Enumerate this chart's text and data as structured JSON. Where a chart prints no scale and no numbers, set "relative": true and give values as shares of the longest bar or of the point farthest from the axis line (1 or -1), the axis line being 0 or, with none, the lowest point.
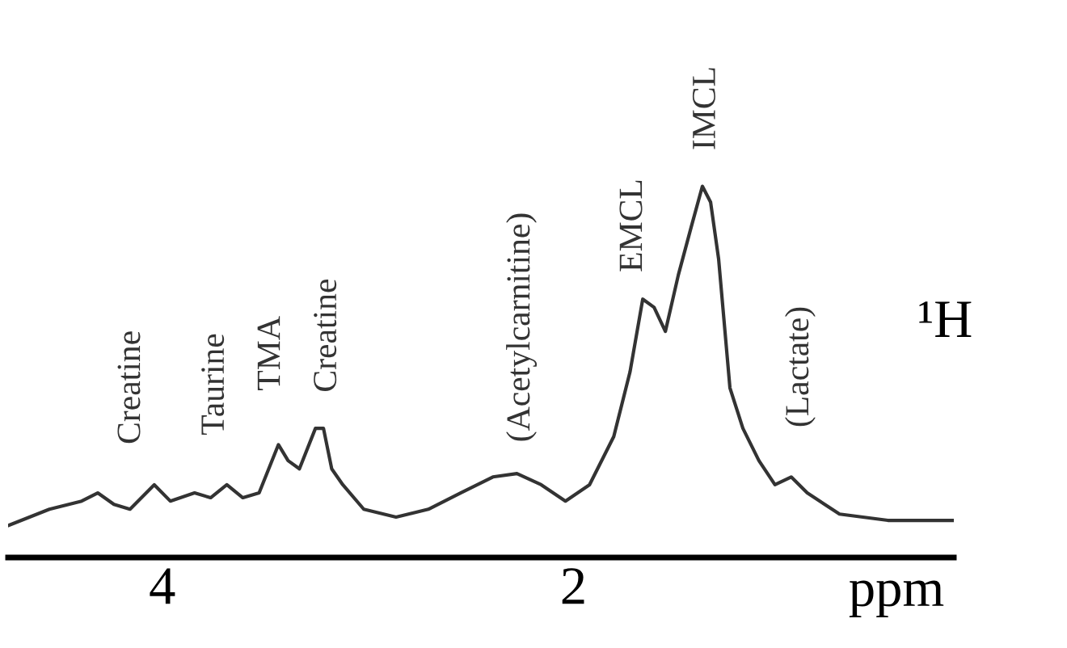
{
  "chart_data": {
    "type": "line",
    "relative": true,
    "xlabel": "ppm",
    "xlim": [
      4.75,
      0.15
    ],
    "xticks": [
      4,
      2
    ],
    "grid": false,
    "marker": "none",
    "line_style": "solid",
    "series": [
      {
        "color": "#333333",
        "x": [
          4.745,
          4.549,
          4.392,
          4.314,
          4.235,
          4.157,
          4.039,
          3.961,
          3.843,
          3.765,
          3.686,
          3.608,
          3.529,
          3.435,
          3.388,
          3.333,
          3.255,
          3.216,
          3.176,
          3.122,
          3.02,
          2.863,
          2.706,
          2.549,
          2.392,
          2.275,
          2.157,
          2.039,
          1.922,
          1.804,
          1.725,
          1.663,
          1.608,
          1.553,
          1.49,
          1.427,
          1.373,
          1.333,
          1.294,
          1.239,
          1.176,
          1.098,
          1.02,
          0.941,
          0.863,
          0.706,
          0.471,
          0.157
        ],
        "values": [
          0.087,
          0.13,
          0.152,
          0.174,
          0.143,
          0.13,
          0.196,
          0.152,
          0.174,
          0.161,
          0.196,
          0.161,
          0.174,
          0.304,
          0.261,
          0.239,
          0.348,
          0.348,
          0.239,
          0.196,
          0.13,
          0.109,
          0.13,
          0.174,
          0.217,
          0.226,
          0.196,
          0.152,
          0.196,
          0.326,
          0.5,
          0.696,
          0.674,
          0.609,
          0.761,
          0.891,
          1.0,
          0.957,
          0.804,
          0.457,
          0.348,
          0.261,
          0.196,
          0.217,
          0.174,
          0.117,
          0.1,
          0.1
        ]
      }
    ],
    "annotations": [
      {
        "text": "Creatine",
        "x": 4.039,
        "y": 0.196
      },
      {
        "text": "Taurine",
        "x": 3.686,
        "y": 0.196
      },
      {
        "text": "TMA",
        "x": 3.435,
        "y": 0.304
      },
      {
        "text": "Creatine",
        "x": 3.216,
        "y": 0.348
      },
      {
        "text": "(Acetylcarnitine)",
        "x": 2.275,
        "y": 0.226
      },
      {
        "text": "EMCL",
        "x": 1.663,
        "y": 0.696
      },
      {
        "text": "IMCL",
        "x": 1.373,
        "y": 1.0
      },
      {
        "text": "(Lactate)",
        "x": 0.941,
        "y": 0.217
      },
      "¹H"
    ]
  }
}
